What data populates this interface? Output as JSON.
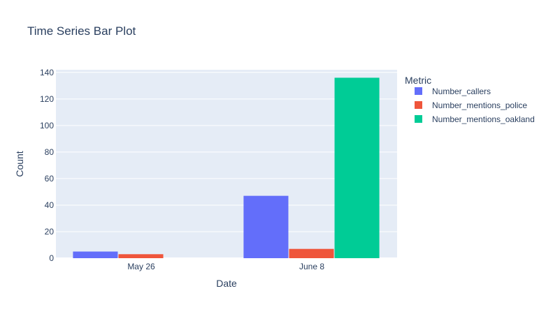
{
  "chart_data": {
    "type": "bar",
    "title": "Time Series Bar Plot",
    "xlabel": "Date",
    "ylabel": "Count",
    "ylim": [
      0,
      142
    ],
    "yticks": [
      0,
      20,
      40,
      60,
      80,
      100,
      120,
      140
    ],
    "categories": [
      "May 26",
      "June 8"
    ],
    "legend_title": "Metric",
    "legend_position": "right",
    "grid": true,
    "plot_bg": "#e5ecf6",
    "series": [
      {
        "name": "Number_callers",
        "color": "#636efa",
        "values": [
          5,
          47
        ]
      },
      {
        "name": "Number_mentions_police",
        "color": "#ef553b",
        "values": [
          3,
          7
        ]
      },
      {
        "name": "Number_mentions_oakland",
        "color": "#00cc96",
        "values": [
          0,
          136
        ]
      }
    ]
  }
}
